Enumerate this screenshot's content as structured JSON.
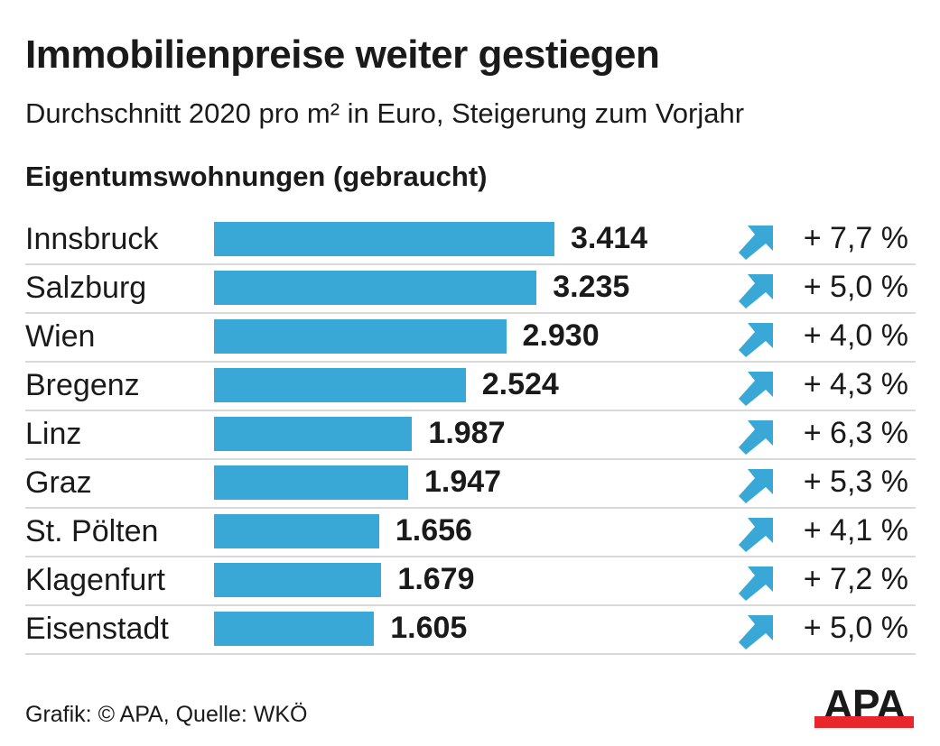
{
  "header": {
    "title": "Immobilienpreise weiter gestiegen",
    "subtitle": "Durchschnitt 2020 pro m² in Euro, Steigerung zum Vorjahr",
    "section": "Eigentumswohnungen (gebraucht)"
  },
  "colors": {
    "bar": "#3aa8d6",
    "arrow": "#3aa8d6",
    "logo_red": "#e8262c",
    "separator": "#d9d9d9"
  },
  "chart_data": {
    "type": "bar",
    "orientation": "horizontal",
    "title": "Immobilienpreise weiter gestiegen",
    "subtitle": "Durchschnitt 2020 pro m² in Euro, Steigerung zum Vorjahr",
    "section": "Eigentumswohnungen (gebraucht)",
    "xlabel": "",
    "ylabel": "",
    "xlim": [
      0,
      3414
    ],
    "grid": false,
    "categories": [
      "Innsbruck",
      "Salzburg",
      "Wien",
      "Bregenz",
      "Linz",
      "Graz",
      "St. Pölten",
      "Klagenfurt",
      "Eisenstadt"
    ],
    "values": [
      3414,
      3235,
      2930,
      2524,
      1987,
      1947,
      1656,
      1679,
      1605
    ],
    "value_labels": [
      "3.414",
      "3.235",
      "2.930",
      "2.524",
      "1.987",
      "1.947",
      "1.656",
      "1.679",
      "1.605"
    ],
    "change_labels": [
      "+ 7,7 %",
      "+ 5,0 %",
      "+ 4,0 %",
      "+ 4,3 %",
      "+ 6,3 %",
      "+ 5,3 %",
      "+ 4,1 %",
      "+ 7,2 %",
      "+ 5,0 %"
    ],
    "change_values": [
      7.7,
      5.0,
      4.0,
      4.3,
      6.3,
      5.3,
      4.1,
      7.2,
      5.0
    ],
    "trend_icon": "arrow-up-right-icon"
  },
  "footer": {
    "credit": "Grafik: © APA, Quelle: WKÖ",
    "logo_text": "APA"
  }
}
